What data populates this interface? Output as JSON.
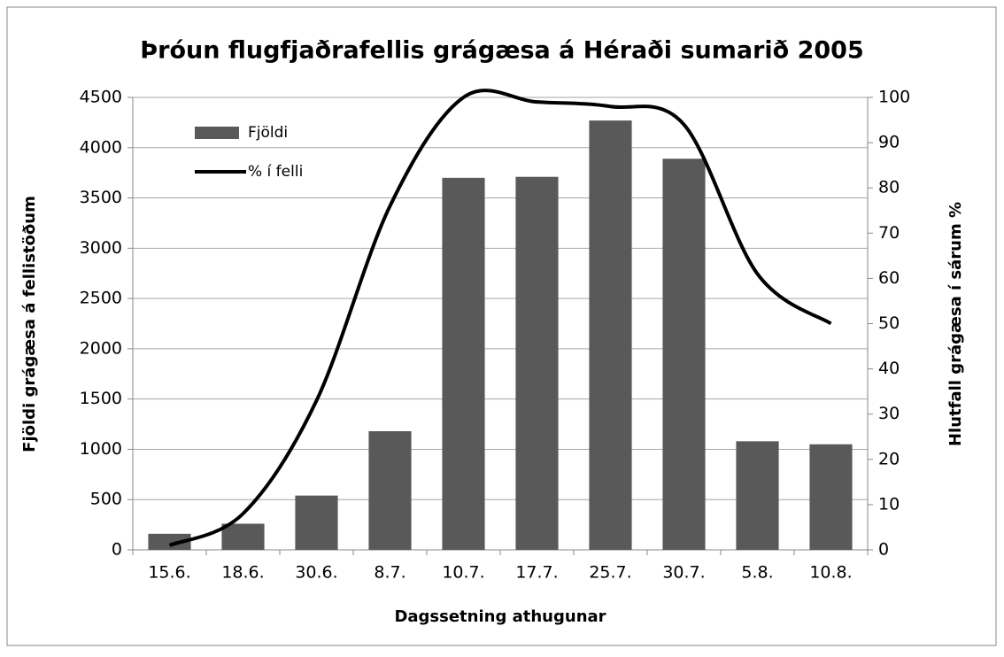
{
  "chart_data": {
    "type": "bar-line",
    "title": "Þróun flugfjaðrafellis grágæsa á Héraði sumarið 2005",
    "x_label": "Dagssetning athugunar",
    "y_label": "Fjöldi grágæsa á fellistöðum",
    "y2_label": "Hlutfall grágæsa í sárum %",
    "categories": [
      "15.6.",
      "18.6.",
      "30.6.",
      "8.7.",
      "10.7.",
      "17.7.",
      "25.7.",
      "30.7.",
      "5.8.",
      "10.8."
    ],
    "series": [
      {
        "name": "Fjöldi",
        "type": "bar",
        "color": "#595959",
        "values": [
          160,
          260,
          540,
          1180,
          3700,
          3710,
          4270,
          3890,
          1080,
          1050
        ]
      },
      {
        "name": "% í felli",
        "type": "line",
        "axis": "y2",
        "color": "#000000",
        "values": [
          1,
          8,
          33,
          76,
          100,
          99,
          98,
          94,
          61,
          50
        ]
      }
    ],
    "ylim": [
      0,
      4500
    ],
    "yticks": [
      0,
      500,
      1000,
      1500,
      2000,
      2500,
      3000,
      3500,
      4000,
      4500
    ],
    "y2lim": [
      0,
      100
    ],
    "y2ticks": [
      0,
      10,
      20,
      30,
      40,
      50,
      60,
      70,
      80,
      90,
      100
    ],
    "grid": true,
    "legend": "upper left"
  }
}
